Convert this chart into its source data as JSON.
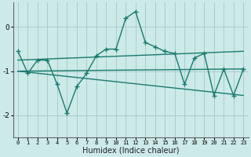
{
  "xlabel": "Humidex (Indice chaleur)",
  "background_color": "#cceae8",
  "grid_color": "#aacccc",
  "line_color": "#1a7a6e",
  "xlim": [
    -0.5,
    23.5
  ],
  "ylim": [
    -2.5,
    0.55
  ],
  "yticks": [
    0,
    -1,
    -2
  ],
  "xticks": [
    0,
    1,
    2,
    3,
    4,
    5,
    6,
    7,
    8,
    9,
    10,
    11,
    12,
    13,
    14,
    15,
    16,
    17,
    18,
    19,
    20,
    21,
    22,
    23
  ],
  "series1": [
    -0.55,
    -1.05,
    -0.75,
    -0.75,
    -1.3,
    -1.95,
    -1.35,
    -1.05,
    -0.65,
    -0.5,
    -0.5,
    0.2,
    0.35,
    -0.35,
    -0.45,
    -0.55,
    -0.6,
    -1.3,
    -0.7,
    -0.6,
    -1.55,
    -0.95,
    -1.55,
    -0.95
  ],
  "line2_x": [
    0,
    23
  ],
  "line2_y": [
    -0.75,
    -0.55
  ],
  "line3_x": [
    0,
    23
  ],
  "line3_y": [
    -1.0,
    -0.95
  ],
  "line4_x": [
    0,
    23
  ],
  "line4_y": [
    -1.0,
    -1.55
  ]
}
